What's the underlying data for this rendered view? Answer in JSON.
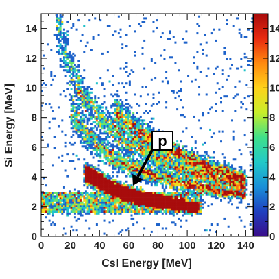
{
  "chart_data": {
    "type": "heatmap",
    "title": "",
    "xlabel": "CsI Energy [MeV]",
    "ylabel": "Si Energy [MeV]",
    "xlim": [
      0,
      145
    ],
    "ylim": [
      0,
      15
    ],
    "x_ticks": [
      0,
      20,
      40,
      60,
      80,
      100,
      120,
      140
    ],
    "y_ticks": [
      0,
      2,
      4,
      6,
      8,
      10,
      12,
      14
    ],
    "colorbar": {
      "range": [
        0,
        15
      ],
      "ticks": [
        0,
        2,
        4,
        6,
        8,
        10,
        12,
        14
      ],
      "stops": [
        "#3a0d8a",
        "#1f3fbf",
        "#1a8fd8",
        "#22c9c8",
        "#3fe08a",
        "#c8ee2a",
        "#ffd21a",
        "#ff8a10",
        "#e82a10",
        "#a80c0c"
      ]
    },
    "loci": [
      {
        "particle": "p",
        "E_CsI": [
          30,
          40,
          50,
          60,
          70,
          80,
          90,
          100,
          108
        ],
        "E_Si": [
          4.3,
          3.7,
          3.2,
          2.85,
          2.6,
          2.4,
          2.2,
          2.05,
          1.95
        ],
        "peak_counts": 14
      },
      {
        "particle": "",
        "E_CsI": [
          20,
          30,
          40,
          50,
          60,
          80,
          100,
          120,
          140
        ],
        "E_Si": [
          8.6,
          7.0,
          6.0,
          5.3,
          4.8,
          4.0,
          3.5,
          3.1,
          2.8
        ],
        "peak_counts": 4
      },
      {
        "particle": "",
        "E_CsI": [
          10,
          20,
          30,
          40,
          60,
          80,
          100,
          120,
          140
        ],
        "E_Si": [
          14.5,
          11.2,
          9.2,
          8.0,
          6.3,
          5.2,
          4.4,
          3.8,
          3.4
        ],
        "peak_counts": 3
      },
      {
        "particle": "",
        "E_CsI": [
          50,
          60,
          70,
          80,
          100,
          120,
          140
        ],
        "E_Si": [
          8.5,
          7.6,
          6.9,
          6.3,
          5.3,
          4.5,
          3.9
        ],
        "peak_counts": 3
      }
    ],
    "background_band": {
      "E_CsI": [
        0,
        110
      ],
      "E_Si": [
        1.6,
        3.0
      ],
      "peak_counts": 3
    },
    "annotation": {
      "label": "p",
      "points_to": [
        62,
        3.4
      ]
    }
  }
}
